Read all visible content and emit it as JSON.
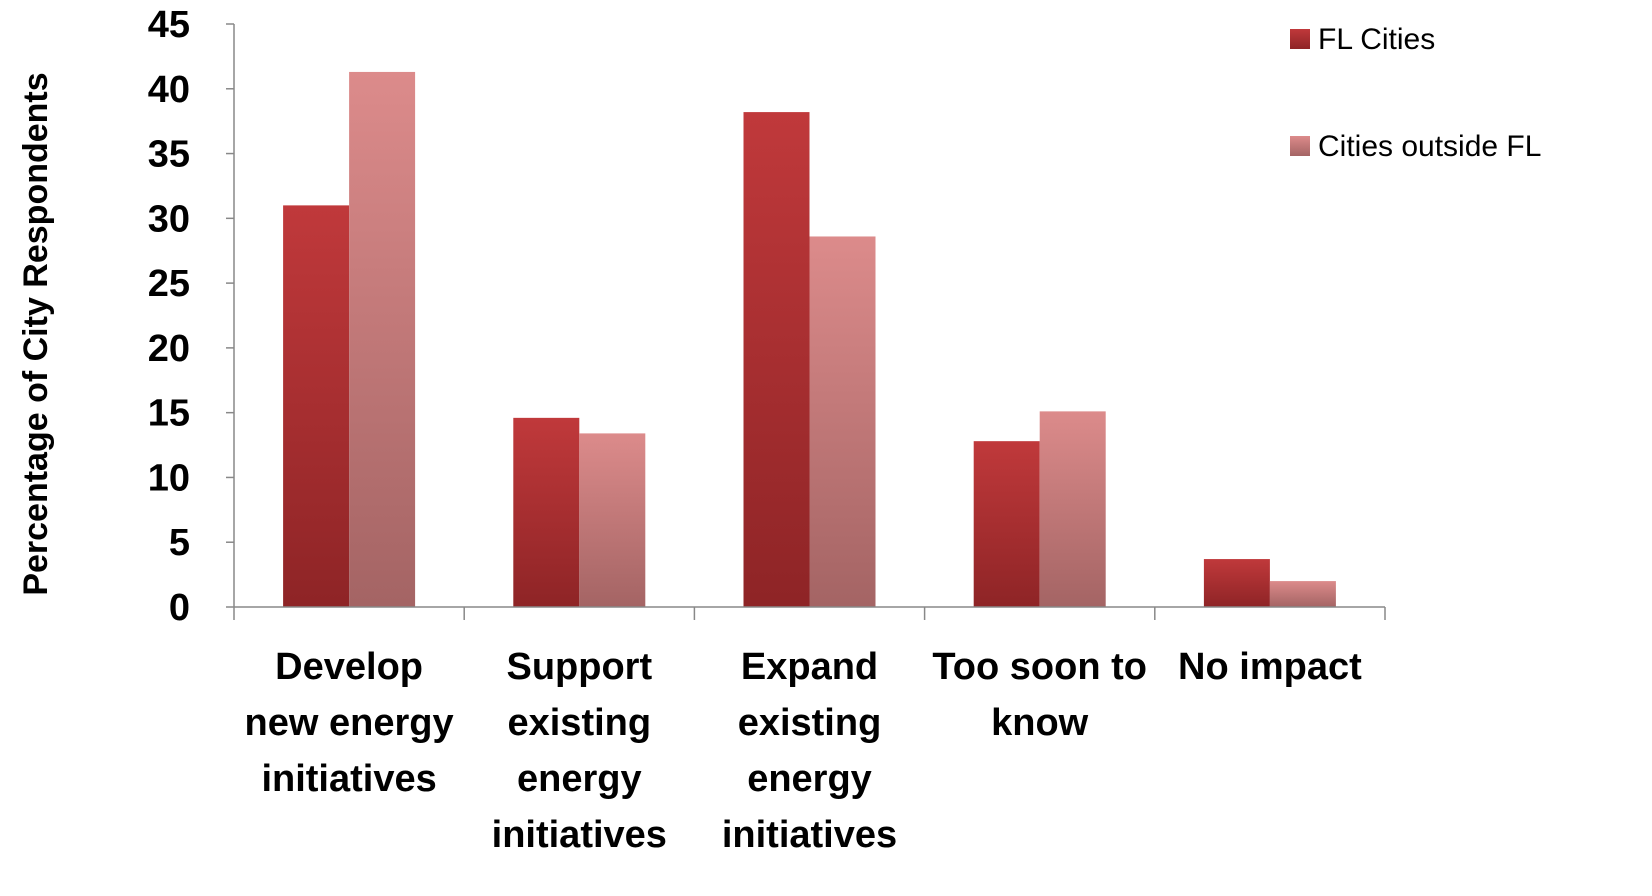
{
  "chart_data": {
    "type": "bar",
    "title": "",
    "xlabel": "",
    "ylabel": "Percentage of City Respondents",
    "ylim": [
      0,
      45
    ],
    "yticks": [
      0,
      5,
      10,
      15,
      20,
      25,
      30,
      35,
      40,
      45
    ],
    "grid": false,
    "legend_position": "top-right",
    "categories": [
      [
        "Develop",
        "new energy",
        "initiatives"
      ],
      [
        "Support",
        "existing",
        "energy",
        "initiatives"
      ],
      [
        "Expand",
        "existing",
        "energy",
        "initiatives"
      ],
      [
        "Too soon to",
        "know"
      ],
      [
        "No impact"
      ]
    ],
    "series": [
      {
        "name": "FL Cities",
        "values": [
          31.0,
          14.6,
          38.2,
          12.8,
          3.7
        ],
        "color_top": "#c0393b",
        "color_bottom": "#8e2426"
      },
      {
        "name": "Cities outside FL",
        "values": [
          41.3,
          13.4,
          28.6,
          15.1,
          2.0
        ],
        "color_top": "#dc8b8b",
        "color_bottom": "#a46464"
      }
    ]
  }
}
